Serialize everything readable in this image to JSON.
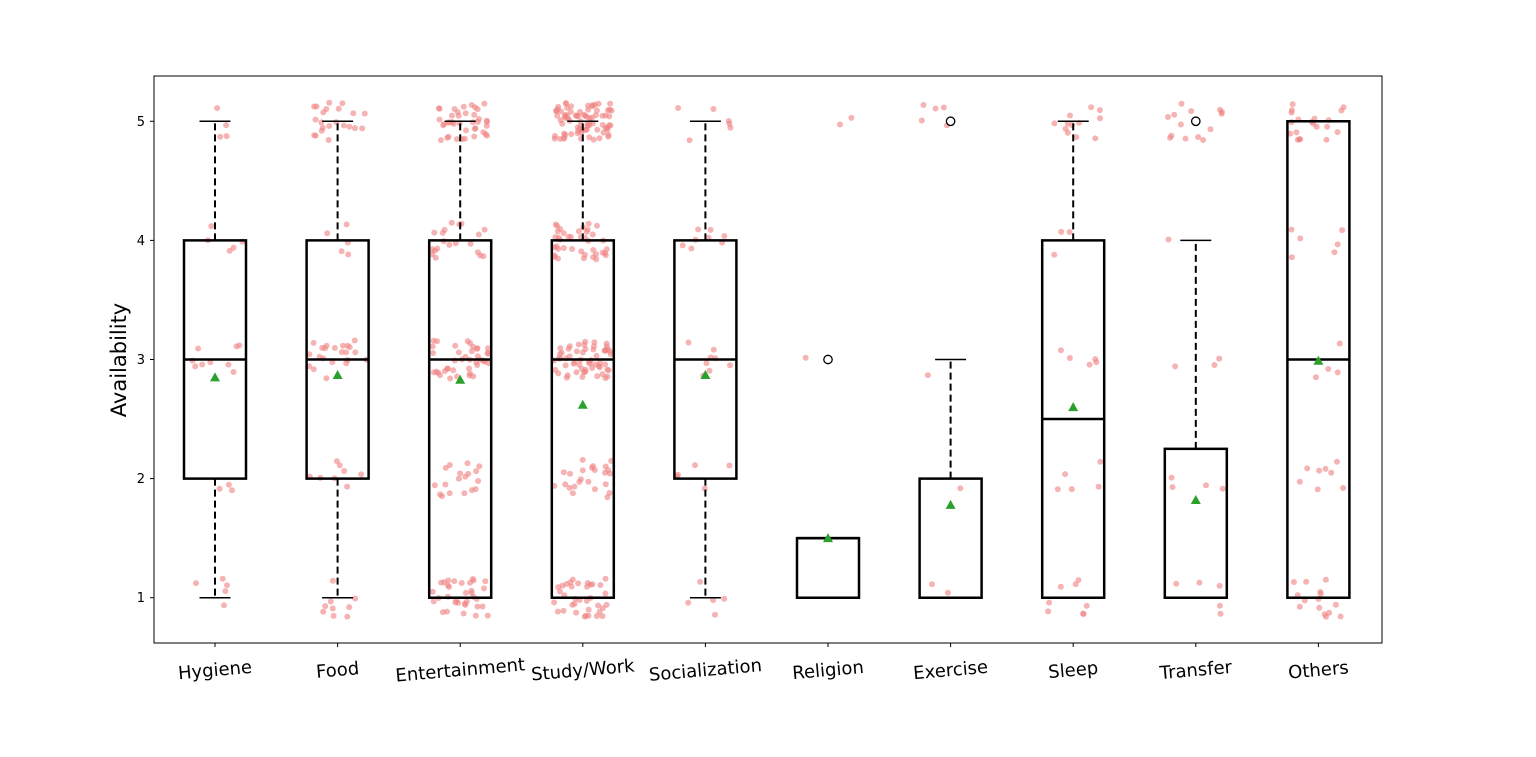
{
  "chart_data": {
    "type": "box",
    "title": "",
    "xlabel": "",
    "ylabel": "Availability",
    "ylim": [
      0.62,
      5.38
    ],
    "yticks": [
      1,
      2,
      3,
      4,
      5
    ],
    "grid": false,
    "categories": [
      "Hygiene",
      "Food",
      "Entertainment",
      "Study/Work",
      "Socialization",
      "Religion",
      "Exercise",
      "Sleep",
      "Transfer",
      "Others"
    ],
    "boxes": [
      {
        "category": "Hygiene",
        "whisker_low": 1,
        "q1": 2,
        "median": 3,
        "q3": 4,
        "whisker_high": 5,
        "mean": 2.85,
        "outliers": []
      },
      {
        "category": "Food",
        "whisker_low": 1,
        "q1": 2,
        "median": 3,
        "q3": 4,
        "whisker_high": 5,
        "mean": 2.87,
        "outliers": []
      },
      {
        "category": "Entertainment",
        "whisker_low": 1,
        "q1": 1,
        "median": 3,
        "q3": 4,
        "whisker_high": 5,
        "mean": 2.83,
        "outliers": []
      },
      {
        "category": "Study/Work",
        "whisker_low": 1,
        "q1": 1,
        "median": 3,
        "q3": 4,
        "whisker_high": 5,
        "mean": 2.62,
        "outliers": []
      },
      {
        "category": "Socialization",
        "whisker_low": 1,
        "q1": 2,
        "median": 3,
        "q3": 4,
        "whisker_high": 5,
        "mean": 2.87,
        "outliers": []
      },
      {
        "category": "Religion",
        "whisker_low": 1,
        "q1": 1,
        "median": 1.5,
        "q3": 1.5,
        "whisker_high": 1.5,
        "mean": 1.5,
        "outliers": [
          3
        ]
      },
      {
        "category": "Exercise",
        "whisker_low": 1,
        "q1": 1,
        "median": 1,
        "q3": 2,
        "whisker_high": 3,
        "mean": 1.78,
        "outliers": [
          5
        ]
      },
      {
        "category": "Sleep",
        "whisker_low": 1,
        "q1": 1,
        "median": 2.5,
        "q3": 4,
        "whisker_high": 5,
        "mean": 2.6,
        "outliers": []
      },
      {
        "category": "Transfer",
        "whisker_low": 1,
        "q1": 1,
        "median": 1,
        "q3": 2.25,
        "whisker_high": 4,
        "mean": 1.82,
        "outliers": [
          5
        ]
      },
      {
        "category": "Others",
        "whisker_low": 1,
        "q1": 1,
        "median": 3,
        "q3": 5,
        "whisker_high": 5,
        "mean": 2.99,
        "outliers": []
      }
    ],
    "jitter_points": {
      "color": "#f08080",
      "counts": [
        [
          5,
          3,
          9,
          5,
          4
        ],
        [
          9,
          8,
          22,
          5,
          22
        ],
        [
          34,
          18,
          40,
          20,
          40
        ],
        [
          36,
          24,
          58,
          40,
          80
        ],
        [
          5,
          5,
          8,
          8,
          6
        ],
        [
          0,
          0,
          1,
          0,
          2
        ],
        [
          2,
          1,
          1,
          0,
          5
        ],
        [
          8,
          5,
          5,
          3,
          12
        ],
        [
          5,
          4,
          3,
          1,
          14
        ],
        [
          15,
          8,
          4,
          6,
          20
        ]
      ]
    },
    "colors": {
      "box": "#000000",
      "mean_marker": "#2ca02c",
      "points": "#f08080"
    },
    "legend": null
  }
}
